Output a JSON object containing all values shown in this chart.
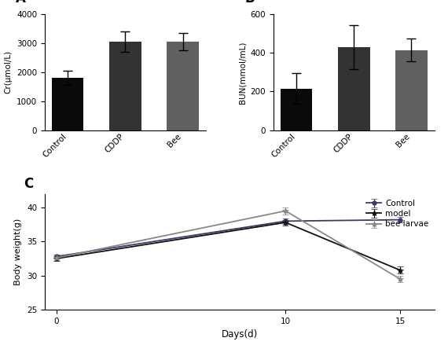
{
  "panel_A": {
    "categories": [
      "Control",
      "CDDP",
      "Bee"
    ],
    "values": [
      1800,
      3050,
      3050
    ],
    "errors": [
      250,
      350,
      300
    ],
    "colors": [
      "#0a0a0a",
      "#333333",
      "#606060"
    ],
    "ylabel": "Cr(μmol/L)",
    "ylim": [
      0,
      4000
    ],
    "yticks": [
      0,
      1000,
      2000,
      3000,
      4000
    ],
    "label": "A"
  },
  "panel_B": {
    "categories": [
      "Control",
      "CDDP",
      "Bee"
    ],
    "values": [
      215,
      430,
      415
    ],
    "errors": [
      80,
      115,
      60
    ],
    "colors": [
      "#0a0a0a",
      "#333333",
      "#606060"
    ],
    "ylabel": "BUN(mmol/mL)",
    "ylim": [
      0,
      600
    ],
    "yticks": [
      0,
      200,
      400,
      600
    ],
    "label": "B"
  },
  "panel_C": {
    "days": [
      0,
      10,
      15
    ],
    "control": [
      32.8,
      38.0,
      38.2
    ],
    "control_err": [
      0.3,
      0.4,
      0.4
    ],
    "model": [
      32.5,
      37.8,
      30.8
    ],
    "model_err": [
      0.3,
      0.4,
      0.5
    ],
    "bee_larvae": [
      32.6,
      39.5,
      29.5
    ],
    "bee_larvae_err": [
      0.3,
      0.5,
      0.5
    ],
    "xlabel": "Days(d)",
    "ylabel": "Body weight(g)",
    "ylim": [
      25,
      42
    ],
    "yticks": [
      25,
      30,
      35,
      40
    ],
    "xlim": [
      -0.5,
      16.5
    ],
    "label": "C",
    "legend_labels": [
      "Control",
      "model",
      "bee larvae"
    ],
    "control_color": "#3b3b6b",
    "model_color": "#111111",
    "bee_larvae_color": "#888888"
  },
  "background_color": "#ffffff"
}
